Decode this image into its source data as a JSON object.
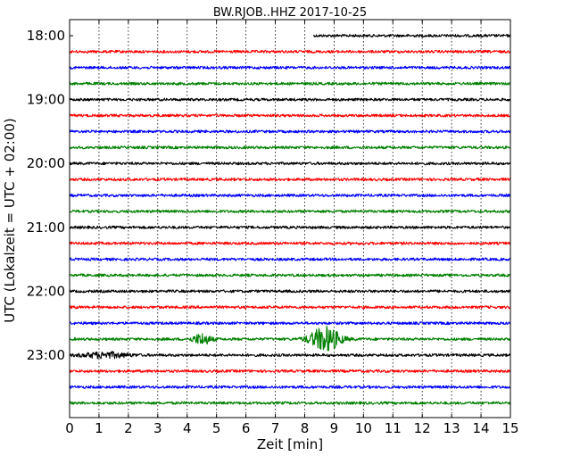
{
  "chart_data": {
    "type": "line",
    "title": "BW.RJOB..HHZ 2017-10-25",
    "xlabel": "Zeit  [min]",
    "ylabel": "UTC (Lokalzeit = UTC + 02:00)",
    "xlim": [
      0,
      15
    ],
    "xticks": [
      "0",
      "1",
      "2",
      "3",
      "4",
      "5",
      "6",
      "7",
      "8",
      "9",
      "10",
      "11",
      "12",
      "13",
      "14",
      "15"
    ],
    "yticks": [
      "18:00",
      "19:00",
      "20:00",
      "21:00",
      "22:00",
      "23:00"
    ],
    "grid": "vertical dotted",
    "trace_interval_min": 15,
    "trace_colors": [
      "#000000",
      "#ff0000",
      "#0000ff",
      "#008000"
    ],
    "traces": [
      {
        "start": "18:00",
        "data_from_min": 8.3
      },
      {
        "start": "18:15"
      },
      {
        "start": "18:30"
      },
      {
        "start": "18:45"
      },
      {
        "start": "19:00"
      },
      {
        "start": "19:15"
      },
      {
        "start": "19:30"
      },
      {
        "start": "19:45"
      },
      {
        "start": "20:00"
      },
      {
        "start": "20:15"
      },
      {
        "start": "20:30"
      },
      {
        "start": "20:45"
      },
      {
        "start": "21:00"
      },
      {
        "start": "21:15"
      },
      {
        "start": "21:30"
      },
      {
        "start": "21:45"
      },
      {
        "start": "22:00"
      },
      {
        "start": "22:15"
      },
      {
        "start": "22:30"
      },
      {
        "start": "22:45",
        "events": [
          {
            "center_min": 4.5,
            "width_min": 0.6,
            "relative_amplitude": 1.0
          },
          {
            "center_min": 8.7,
            "width_min": 1.0,
            "relative_amplitude": 2.3
          }
        ]
      },
      {
        "start": "23:00",
        "events": [
          {
            "center_min": 1.2,
            "width_min": 1.5,
            "relative_amplitude": 0.5
          }
        ]
      },
      {
        "start": "23:15"
      },
      {
        "start": "23:30"
      },
      {
        "start": "23:45"
      }
    ]
  }
}
